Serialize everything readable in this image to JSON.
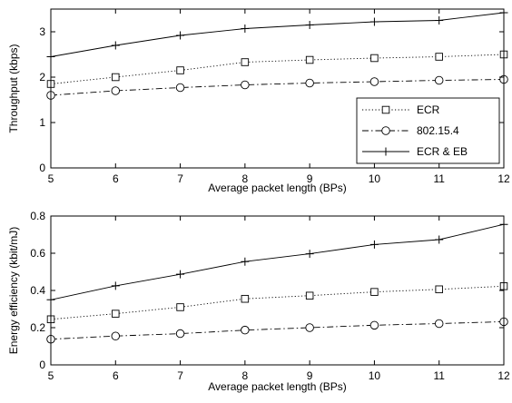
{
  "chart_data": [
    {
      "type": "line",
      "xlabel": "Average packet length (BPs)",
      "ylabel": "Throughput (kbps)",
      "x": [
        5,
        6,
        7,
        8,
        9,
        10,
        11,
        12
      ],
      "xlim": [
        5,
        12
      ],
      "ylim": [
        0,
        3.5
      ],
      "xticks": [
        "5",
        "6",
        "7",
        "8",
        "9",
        "10",
        "11",
        "12"
      ],
      "yticks": [
        "0",
        "1",
        "2",
        "3"
      ],
      "ytick_values": [
        0,
        1,
        2,
        3
      ],
      "grid": false,
      "legend": {
        "placement": "bottom-right",
        "entries": [
          "ECR",
          "802.15.4",
          "ECR & EB"
        ]
      },
      "series": [
        {
          "name": "ECR",
          "style": "dotted",
          "marker": "square",
          "values": [
            1.85,
            2.0,
            2.15,
            2.33,
            2.38,
            2.42,
            2.45,
            2.5
          ]
        },
        {
          "name": "802.15.4",
          "style": "dashdot",
          "marker": "circle",
          "values": [
            1.6,
            1.7,
            1.77,
            1.83,
            1.87,
            1.9,
            1.93,
            1.95
          ]
        },
        {
          "name": "ECR & EB",
          "style": "solid",
          "marker": "plus",
          "values": [
            2.45,
            2.7,
            2.92,
            3.07,
            3.15,
            3.22,
            3.25,
            3.42
          ]
        }
      ]
    },
    {
      "type": "line",
      "xlabel": "Average packet length (BPs)",
      "ylabel": "Energy efficiency (kbit/mJ)",
      "x": [
        5,
        6,
        7,
        8,
        9,
        10,
        11,
        12
      ],
      "xlim": [
        5,
        12
      ],
      "ylim": [
        0,
        0.8
      ],
      "xticks": [
        "5",
        "6",
        "7",
        "8",
        "9",
        "10",
        "11",
        "12"
      ],
      "yticks": [
        "0",
        "0.2",
        "0.4",
        "0.6",
        "0.8"
      ],
      "ytick_values": [
        0,
        0.2,
        0.4,
        0.6,
        0.8
      ],
      "grid": false,
      "series": [
        {
          "style": "dotted",
          "marker": "square",
          "values": [
            0.245,
            0.275,
            0.31,
            0.355,
            0.372,
            0.392,
            0.406,
            0.423
          ]
        },
        {
          "style": "dashdot",
          "marker": "circle",
          "values": [
            0.138,
            0.155,
            0.168,
            0.187,
            0.2,
            0.213,
            0.222,
            0.232
          ]
        },
        {
          "style": "solid",
          "marker": "plus",
          "values": [
            0.35,
            0.425,
            0.487,
            0.555,
            0.597,
            0.647,
            0.673,
            0.755
          ]
        }
      ]
    }
  ]
}
